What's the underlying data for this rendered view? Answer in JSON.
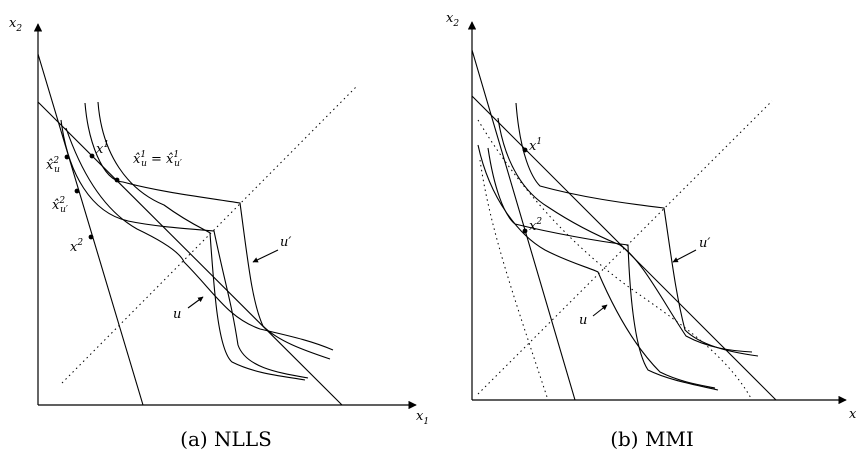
{
  "panel_a": {
    "caption": "(a) NLLS",
    "axis_x": "x",
    "axis_x_sub": "1",
    "axis_y": "x",
    "axis_y_sub": "2",
    "label_x1": "x",
    "label_x1_sup": "1",
    "label_x2": "x",
    "label_x2_sup": "2",
    "label_xhat_u1": "x̂",
    "label_xhat_u1_sub": "u",
    "label_xhat_u1_sup": "1",
    "label_eq": " = ",
    "label_xhat_up1": "x̂",
    "label_xhat_up1_sub": "u′",
    "label_xhat_up1_sup": "1",
    "label_xhat_u2": "x̂",
    "label_xhat_u2_sub": "u",
    "label_xhat_u2_sup": "2",
    "label_xhat_up2": "x̂",
    "label_xhat_up2_sub": "u′",
    "label_xhat_up2_sup": "2",
    "label_u": "u",
    "label_uprime": "u′"
  },
  "panel_b": {
    "caption": "(b) MMI",
    "axis_x": "x",
    "axis_y": "x",
    "axis_y_sub": "2",
    "label_x1": "x",
    "label_x1_sup": "1",
    "label_x2": "x",
    "label_x2_sup": "2",
    "label_u": "u",
    "label_uprime": "u′"
  }
}
